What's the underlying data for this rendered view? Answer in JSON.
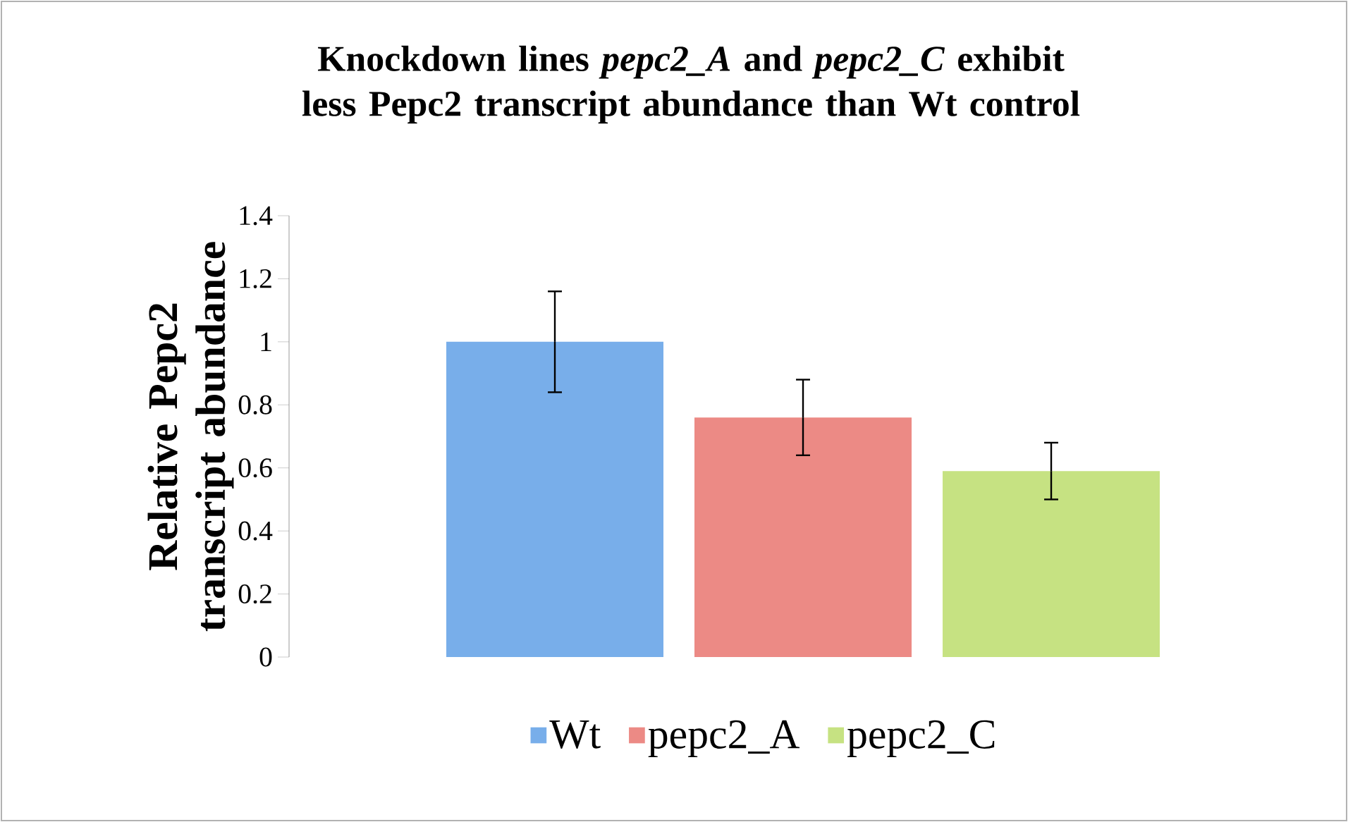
{
  "chart_data": {
    "type": "bar",
    "title": "Knockdown lines *pepc2_A* and *pepc2_C* exhibit less Pepc2 transcript abundance than Wt control",
    "ylabel": "Relative Pepc2 transcript abundance",
    "categories": [
      null
    ],
    "series": [
      {
        "name": "Wt",
        "color": "#78aeea",
        "values": [
          1.0
        ],
        "errors": [
          [
            0.84,
            1.16
          ]
        ]
      },
      {
        "name": "pepc2_A",
        "color": "#ec8a85",
        "values": [
          0.76
        ],
        "errors": [
          [
            0.64,
            0.88
          ]
        ]
      },
      {
        "name": "pepc2_C",
        "color": "#c6e282",
        "values": [
          0.59
        ],
        "errors": [
          [
            0.5,
            0.68
          ]
        ]
      }
    ],
    "ylim": [
      0,
      1.4
    ],
    "yticks": [
      0,
      0.2,
      0.4,
      0.6,
      0.8,
      1,
      1.2,
      1.4
    ],
    "grid": false,
    "legend": "bottom"
  }
}
